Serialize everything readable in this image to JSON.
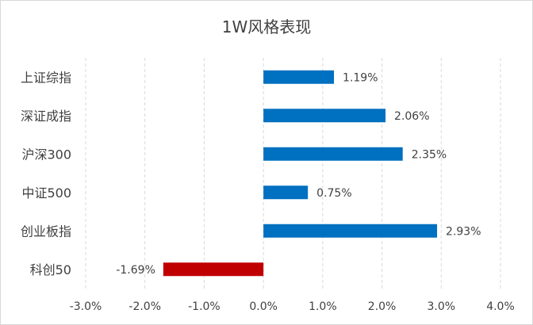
{
  "chart_data": {
    "type": "bar",
    "orientation": "horizontal",
    "title": "1W风格表现",
    "categories": [
      "上证综指",
      "深证成指",
      "沪深300",
      "中证500",
      "创业板指",
      "科创50"
    ],
    "values": [
      1.19,
      2.06,
      2.35,
      0.75,
      2.93,
      -1.69
    ],
    "value_labels": [
      "1.19%",
      "2.06%",
      "2.35%",
      "0.75%",
      "2.93%",
      "-1.69%"
    ],
    "xlim": [
      -3.0,
      4.0
    ],
    "x_ticks": [
      -3.0,
      -2.0,
      -1.0,
      0.0,
      1.0,
      2.0,
      3.0,
      4.0
    ],
    "x_tick_labels": [
      "-3.0%",
      "-2.0%",
      "-1.0%",
      "0.0%",
      "1.0%",
      "2.0%",
      "3.0%",
      "4.0%"
    ],
    "grid": "vertical-dashed",
    "colors": {
      "positive": "#0070c0",
      "negative": "#c00000",
      "grid": "#d9d9d9",
      "text": "#404040"
    }
  }
}
